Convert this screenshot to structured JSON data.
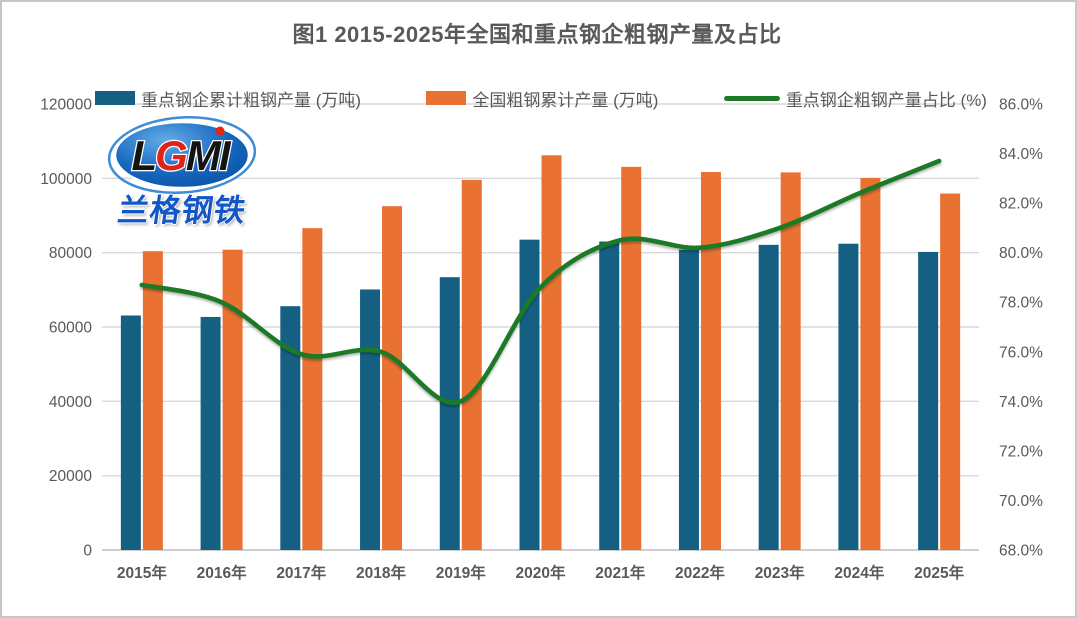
{
  "logo": {
    "main": "LGMI",
    "sub": "兰格钢铁",
    "letter_colors": [
      "#141414",
      "#E02318",
      "#141414",
      "#141414"
    ],
    "ellipse_colors": [
      "#63ABE8",
      "#1668C0",
      "#0A4FA0"
    ],
    "ring_color": "#3E8BD6",
    "sub_color": "#1356C8",
    "dot_color": "#E8250F"
  },
  "chart_data": {
    "type": "combo-bar-line",
    "title": "图1 2015-2025年全国和重点钢企粗钢产量及占比",
    "categories": [
      "2015年",
      "2016年",
      "2017年",
      "2018年",
      "2019年",
      "2020年",
      "2021年",
      "2022年",
      "2023年",
      "2024年",
      "2025年"
    ],
    "series": [
      {
        "name": "重点钢企累计粗钢产量 (万吨)",
        "type": "bar",
        "axis": "left",
        "color": "#156082",
        "values": [
          63100,
          62700,
          65600,
          70100,
          73400,
          83500,
          83000,
          80800,
          82100,
          82400,
          80200
        ]
      },
      {
        "name": "全国粗钢累计产量 (万吨)",
        "type": "bar",
        "axis": "left",
        "color": "#E97132",
        "values": [
          80400,
          80800,
          86600,
          92500,
          99600,
          106200,
          103100,
          101700,
          101600,
          100100,
          95900
        ]
      },
      {
        "name": "重点钢企粗钢产量占比 (%)",
        "type": "line",
        "axis": "right",
        "smoothed": true,
        "color": "#1E7A28",
        "values": [
          78.7,
          78.0,
          75.9,
          76.0,
          74.0,
          78.6,
          80.5,
          80.2,
          81.0,
          82.4,
          83.7
        ]
      }
    ],
    "left_axis": {
      "min": 0,
      "max": 120000,
      "step": 20000,
      "tick_labels": [
        "0",
        "20000",
        "40000",
        "60000",
        "80000",
        "100000",
        "120000"
      ]
    },
    "right_axis": {
      "min": 68,
      "max": 86,
      "step": 2,
      "tick_labels": [
        "68.0%",
        "70.0%",
        "72.0%",
        "74.0%",
        "76.0%",
        "78.0%",
        "80.0%",
        "82.0%",
        "84.0%",
        "86.0%"
      ]
    },
    "grid": true,
    "legend_position": "top",
    "colors": {
      "gridline": "#D9D9D9",
      "axis_line": "#BFBFBF",
      "label": "#595959",
      "title": "#595959"
    }
  }
}
